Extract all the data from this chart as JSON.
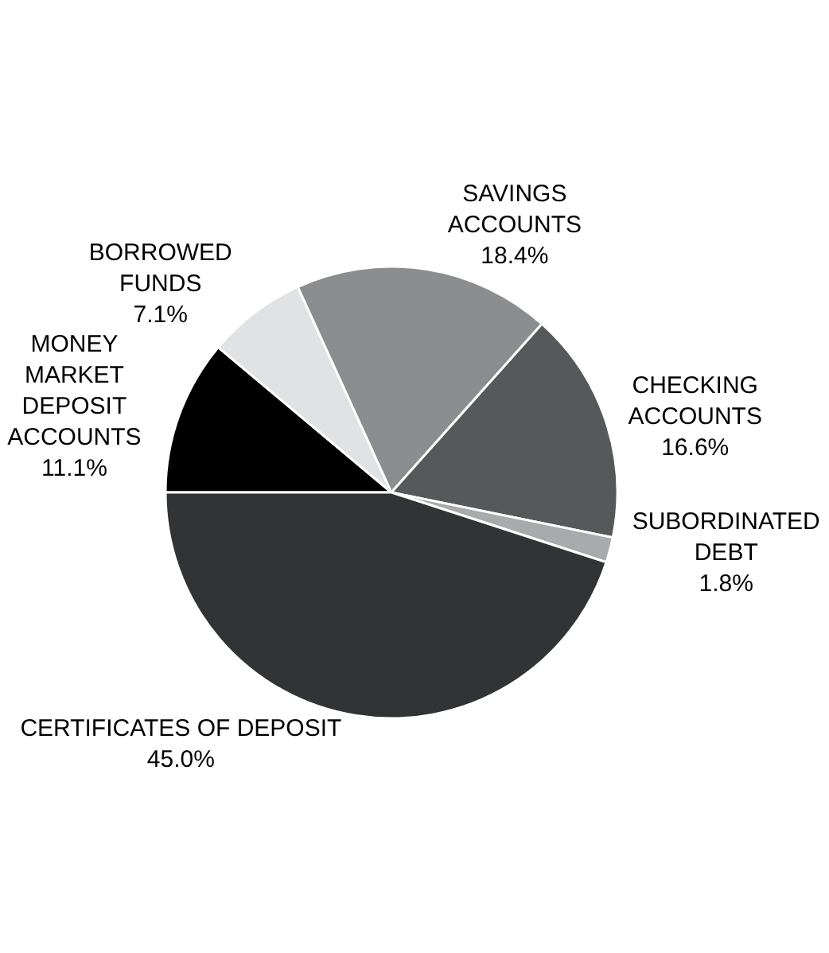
{
  "chart_data": {
    "type": "pie",
    "categories": [
      "MONEY\nMARKET\nDEPOSIT\nACCOUNTS",
      "BORROWED\nFUNDS",
      "SAVINGS\nACCOUNTS",
      "CHECKING\nACCOUNTS",
      "SUBORDINATED\nDEBT",
      "CERTIFICATES OF DEPOSIT"
    ],
    "values": [
      11.1,
      7.1,
      18.4,
      16.6,
      1.8,
      45.0
    ],
    "value_labels": [
      "11.1%",
      "7.1%",
      "18.4%",
      "16.6%",
      "1.8%",
      "45.0%"
    ],
    "colors": [
      "#000000",
      "#e1e2e4",
      "#8b8d8f",
      "#56595a",
      "#a8aaac",
      "#313335"
    ],
    "legend": false
  }
}
